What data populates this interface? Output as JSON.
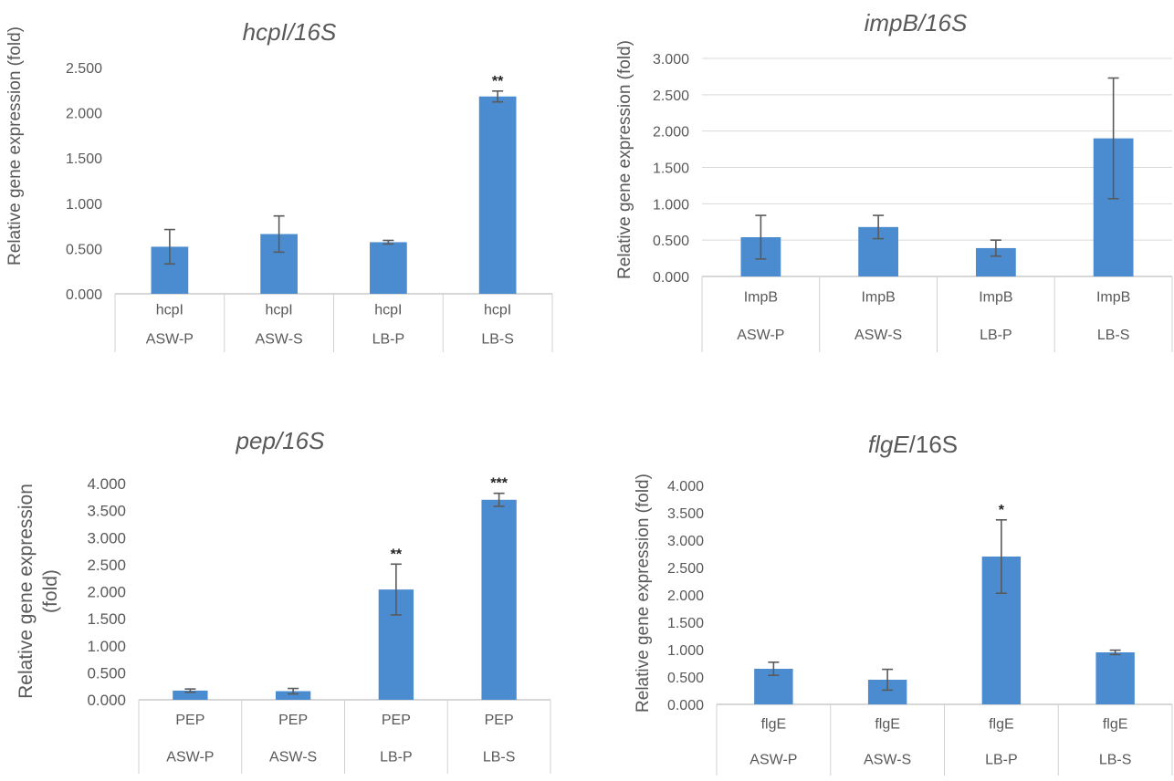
{
  "chart_data": [
    {
      "type": "bar",
      "title_gene": "hcpI",
      "title_rest": "/16S",
      "title_style": "italic",
      "ylabel": "Relative gene expression (fold)",
      "ylim": [
        0,
        2.5
      ],
      "yticks": [
        "0.000",
        "0.500",
        "1.000",
        "1.500",
        "2.000",
        "2.500"
      ],
      "grid": false,
      "categories": [
        {
          "gene": "hcpI",
          "condition": "ASW-P"
        },
        {
          "gene": "hcpI",
          "condition": "ASW-S"
        },
        {
          "gene": "hcpI",
          "condition": "LB-P"
        },
        {
          "gene": "hcpI",
          "condition": "LB-S"
        }
      ],
      "values": [
        0.52,
        0.66,
        0.57,
        2.18
      ],
      "error": [
        0.19,
        0.2,
        0.02,
        0.06
      ],
      "significance": [
        "",
        "",
        "",
        "**"
      ],
      "bar_color": "#4a8ccf"
    },
    {
      "type": "bar",
      "title_gene": "impB",
      "title_rest": "/16S",
      "title_style": "italic",
      "ylabel": "Relative gene expression (fold)",
      "ylim": [
        0,
        3
      ],
      "yticks": [
        "0.000",
        "0.500",
        "1.000",
        "1.500",
        "2.000",
        "2.500",
        "3.000"
      ],
      "grid": true,
      "categories": [
        {
          "gene": "ImpB",
          "condition": "ASW-P"
        },
        {
          "gene": "ImpB",
          "condition": "ASW-S"
        },
        {
          "gene": "ImpB",
          "condition": "LB-P"
        },
        {
          "gene": "ImpB",
          "condition": "LB-S"
        }
      ],
      "values": [
        0.54,
        0.68,
        0.39,
        1.9
      ],
      "error": [
        0.3,
        0.16,
        0.11,
        0.83
      ],
      "significance": [
        "",
        "",
        "",
        ""
      ],
      "bar_color": "#4a8ccf"
    },
    {
      "type": "bar",
      "title_gene": "pep",
      "title_rest": "/16S",
      "title_style": "italic",
      "ylabel_lines": [
        "Relative gene expression",
        "(fold)"
      ],
      "ylim": [
        0,
        4
      ],
      "yticks": [
        "0.000",
        "0.500",
        "1.000",
        "1.500",
        "2.000",
        "2.500",
        "3.000",
        "3.500",
        "4.000"
      ],
      "grid": false,
      "categories": [
        {
          "gene": "PEP",
          "condition": "ASW-P"
        },
        {
          "gene": "PEP",
          "condition": "ASW-S"
        },
        {
          "gene": "PEP",
          "condition": "LB-P"
        },
        {
          "gene": "PEP",
          "condition": "LB-S"
        }
      ],
      "values": [
        0.17,
        0.16,
        2.04,
        3.7
      ],
      "error": [
        0.03,
        0.05,
        0.47,
        0.12
      ],
      "significance": [
        "",
        "",
        "**",
        "***"
      ],
      "bar_color": "#4a8ccf"
    },
    {
      "type": "bar",
      "title_gene": "flgE",
      "title_rest": "/16S",
      "title_style": "gene-italic",
      "ylabel": "Relative gene expression (fold)",
      "ylim": [
        0,
        4
      ],
      "yticks": [
        "0.000",
        "0.500",
        "1.000",
        "1.500",
        "2.000",
        "2.500",
        "3.000",
        "3.500",
        "4.000"
      ],
      "grid": false,
      "categories": [
        {
          "gene": "flgE",
          "condition": "ASW-P"
        },
        {
          "gene": "flgE",
          "condition": "ASW-S"
        },
        {
          "gene": "flgE",
          "condition": "LB-P"
        },
        {
          "gene": "flgE",
          "condition": "LB-S"
        }
      ],
      "values": [
        0.65,
        0.45,
        2.7,
        0.95
      ],
      "error": [
        0.12,
        0.19,
        0.67,
        0.04
      ],
      "significance": [
        "",
        "",
        "*",
        ""
      ],
      "bar_color": "#4a8ccf"
    }
  ]
}
